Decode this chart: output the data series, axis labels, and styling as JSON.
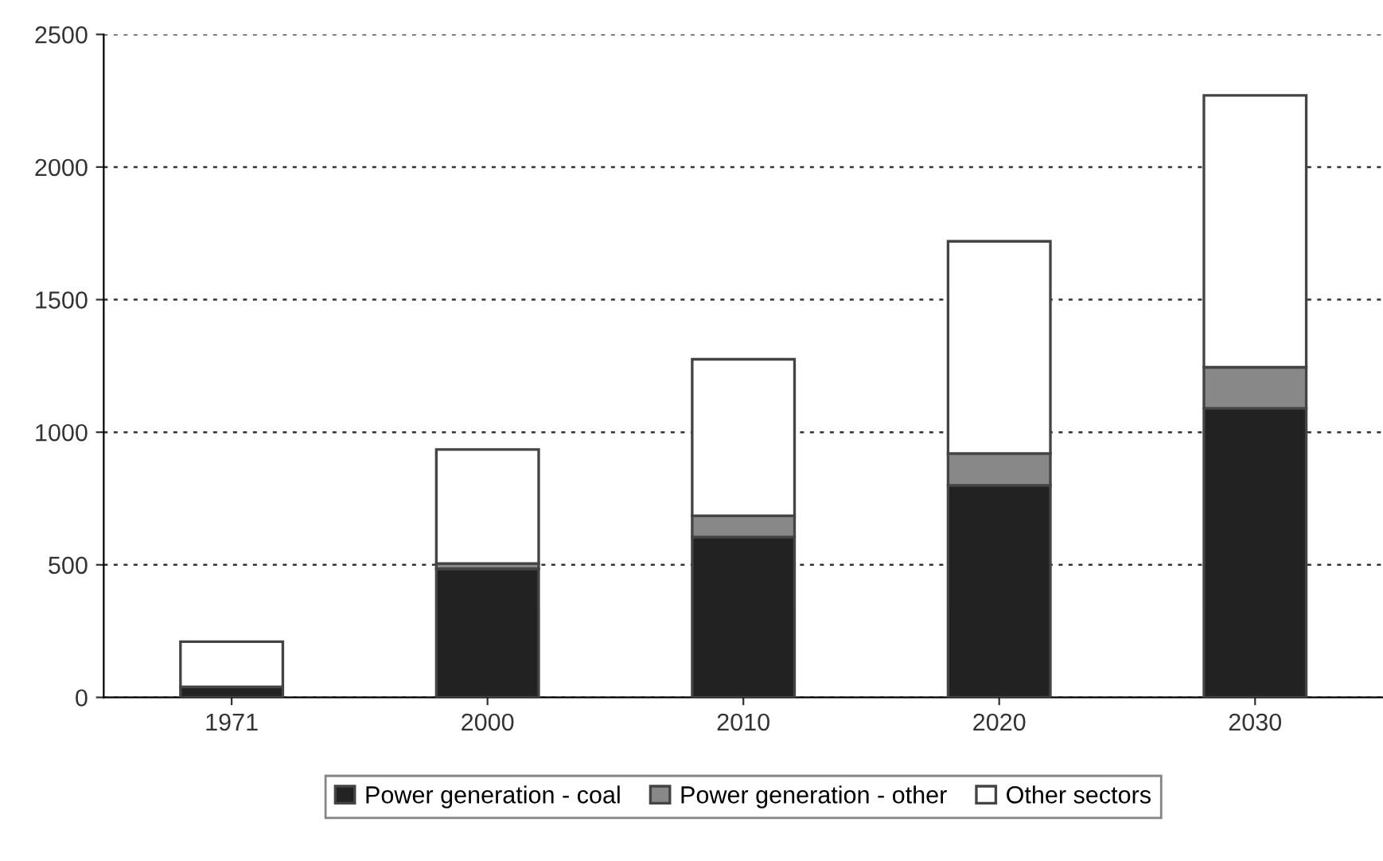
{
  "chart_data": {
    "type": "bar",
    "stacked": true,
    "categories": [
      "1971",
      "2000",
      "2010",
      "2020",
      "2030"
    ],
    "series": [
      {
        "name": "Power generation - coal",
        "color": "#222222",
        "values": [
          40,
          485,
          605,
          800,
          1090
        ]
      },
      {
        "name": "Power generation - other",
        "color": "#888888",
        "values": [
          0,
          20,
          80,
          120,
          155
        ]
      },
      {
        "name": "Other sectors",
        "color": "#ffffff",
        "values": [
          170,
          430,
          590,
          800,
          1025
        ]
      }
    ],
    "ylim": [
      0,
      2500
    ],
    "yticks": [
      0,
      500,
      1000,
      1500,
      2000,
      2500
    ],
    "grid": "y",
    "legend": "bottom"
  }
}
